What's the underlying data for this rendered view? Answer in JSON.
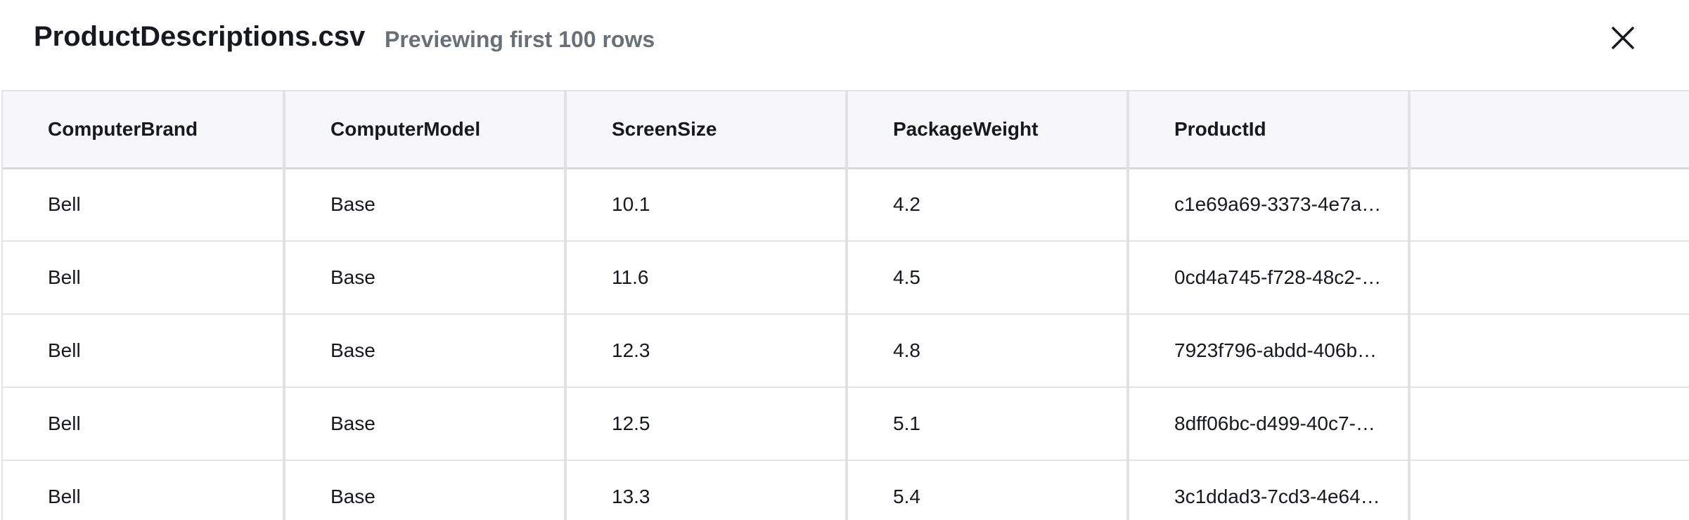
{
  "header": {
    "title": "ProductDescriptions.csv",
    "subtitle": "Previewing first 100 rows",
    "close_icon": "close-icon"
  },
  "table": {
    "columns": [
      "ComputerBrand",
      "ComputerModel",
      "ScreenSize",
      "PackageWeight",
      "ProductId",
      ""
    ],
    "rows": [
      [
        "Bell",
        "Base",
        "10.1",
        "4.2",
        "c1e69a69-3373-4e7a…",
        ""
      ],
      [
        "Bell",
        "Base",
        "11.6",
        "4.5",
        "0cd4a745-f728-48c2-…",
        ""
      ],
      [
        "Bell",
        "Base",
        "12.3",
        "4.8",
        "7923f796-abdd-406b…",
        ""
      ],
      [
        "Bell",
        "Base",
        "12.5",
        "5.1",
        "8dff06bc-d499-40c7-…",
        ""
      ],
      [
        "Bell",
        "Base",
        "13.3",
        "5.4",
        "3c1ddad3-7cd3-4e64…",
        ""
      ]
    ]
  },
  "colors": {
    "text": "#16191f",
    "subtitle": "#687078",
    "header_bg": "#f7f6f9",
    "border": "#e1e1e4"
  }
}
